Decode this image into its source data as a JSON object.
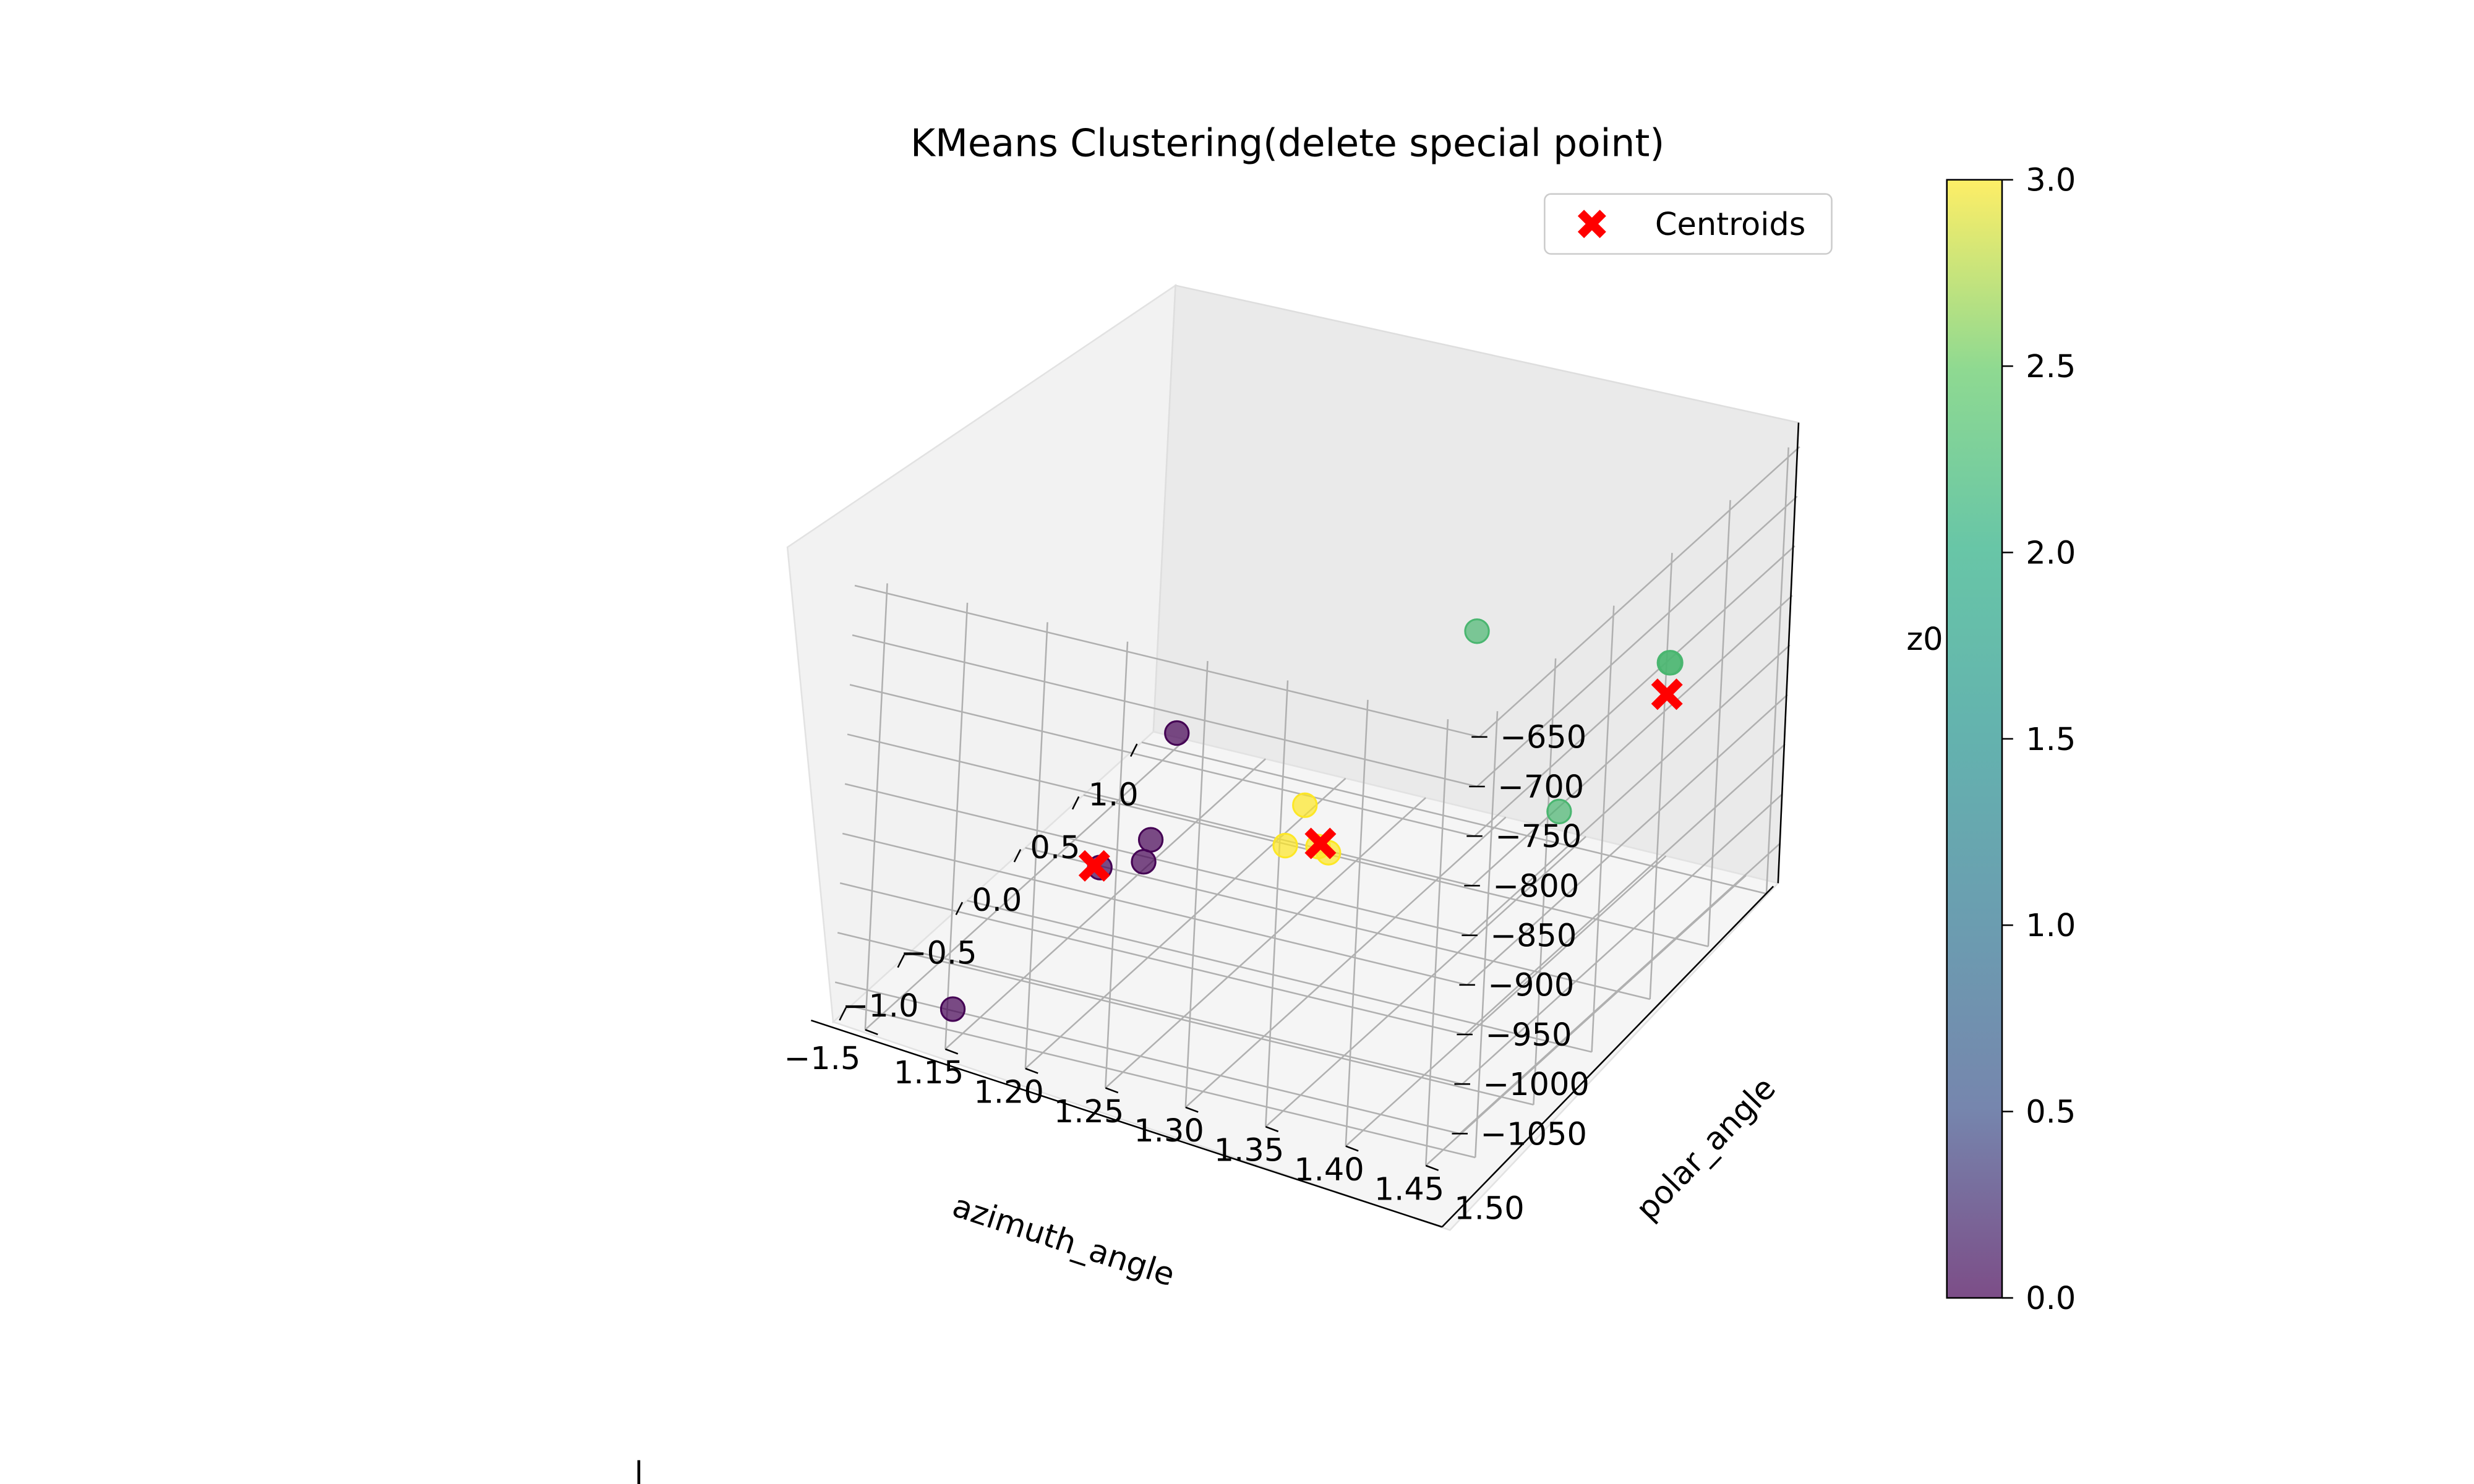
{
  "chart_data": {
    "type": "scatter",
    "title": "KMeans Clustering(delete special point)",
    "xlabel": "azimuth_angle",
    "ylabel": "polar_angle",
    "zlabel": "z0",
    "x_ticks": [
      "−1.5",
      "−1.0",
      "−0.5",
      "0.0",
      "0.5",
      "1.0"
    ],
    "y_ticks": [
      "1.15",
      "1.20",
      "1.25",
      "1.30",
      "1.35",
      "1.40",
      "1.45",
      "1.50"
    ],
    "z_ticks": [
      "−650",
      "−700",
      "−750",
      "−800",
      "−850",
      "−900",
      "−950",
      "−1000",
      "−1050"
    ],
    "xlim": [
      -1.65,
      1.1
    ],
    "ylim": [
      1.13,
      1.52
    ],
    "zlim": [
      -1090,
      -640
    ],
    "colorbar": {
      "min": 0.0,
      "max": 3.0,
      "ticks": [
        "0.0",
        "0.5",
        "1.0",
        "1.5",
        "2.0",
        "2.5",
        "3.0"
      ],
      "colormap": "viridis",
      "alpha": 0.7
    },
    "legend": {
      "position": "top-right",
      "entries": [
        "Centroids"
      ]
    },
    "centroid_color": "#ff0000",
    "points": [
      {
        "x": -1.6,
        "y": 1.2,
        "z": -1055,
        "cluster": 0
      },
      {
        "x": -0.05,
        "y": 1.18,
        "z": -1085,
        "cluster": 0
      },
      {
        "x": 0.05,
        "y": 1.2,
        "z": -1082,
        "cluster": 0
      },
      {
        "x": 0.25,
        "y": 1.19,
        "z": -1085,
        "cluster": 0
      },
      {
        "x": 1.02,
        "y": 1.15,
        "z": -1075,
        "cluster": 0
      },
      {
        "x": -0.9,
        "y": 1.52,
        "z": -805,
        "cluster": 2
      },
      {
        "x": 0.9,
        "y": 1.46,
        "z": -870,
        "cluster": 2
      },
      {
        "x": 0.91,
        "y": 1.46,
        "z": -871,
        "cluster": 2
      },
      {
        "x": 1.05,
        "y": 1.33,
        "z": -905,
        "cluster": 2
      },
      {
        "x": 0.15,
        "y": 1.28,
        "z": -1045,
        "cluster": 3
      },
      {
        "x": 0.25,
        "y": 1.3,
        "z": -1055,
        "cluster": 3
      },
      {
        "x": 0.3,
        "y": 1.29,
        "z": -1058,
        "cluster": 3
      },
      {
        "x": 0.6,
        "y": 1.26,
        "z": -1060,
        "cluster": 3
      }
    ],
    "centroids": [
      {
        "x": -0.1,
        "y": 1.18,
        "z": -1078
      },
      {
        "x": 0.6,
        "y": 1.48,
        "z": -862
      },
      {
        "x": 0.32,
        "y": 1.29,
        "z": -1057
      }
    ]
  }
}
